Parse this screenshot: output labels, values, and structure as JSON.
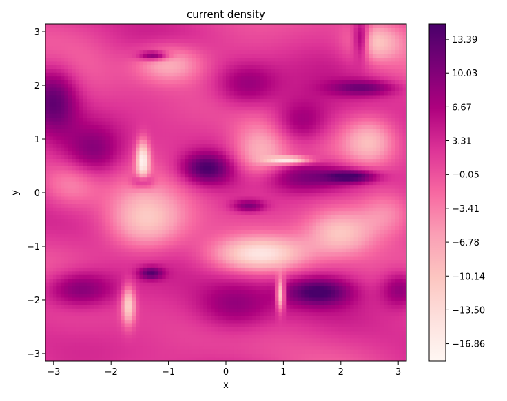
{
  "chart_data": {
    "type": "heatmap",
    "title": "current density",
    "xlabel": "x",
    "ylabel": "y",
    "xlim": [
      -3.14159,
      3.14159
    ],
    "ylim": [
      -3.14159,
      3.14159
    ],
    "xticks": [
      -3,
      -2,
      -1,
      0,
      1,
      2,
      3
    ],
    "yticks": [
      -3,
      -2,
      -1,
      0,
      1,
      2,
      3
    ],
    "colormap": "RdPu",
    "colorbar": {
      "vmin": -18.6,
      "vmax": 14.9,
      "ticks": [
        13.39,
        10.03,
        6.67,
        3.31,
        -0.05,
        -3.41,
        -6.78,
        -10.14,
        -13.5,
        -16.86
      ],
      "tick_labels": [
        "13.39",
        "10.03",
        "6.67",
        "3.31",
        "−0.05",
        "−3.41",
        "−6.78",
        "−10.14",
        "−13.50",
        "−16.86"
      ]
    },
    "grid": false,
    "features": [
      {
        "x": -3.0,
        "y": 1.75,
        "value": 12.5,
        "sx": 0.3,
        "sy": 0.45
      },
      {
        "x": -2.55,
        "y": -1.8,
        "value": 12.5,
        "sx": 0.45,
        "sy": 0.25
      },
      {
        "x": -2.3,
        "y": 0.75,
        "value": 9.0,
        "sx": 0.35,
        "sy": 0.35
      },
      {
        "x": -0.35,
        "y": 0.45,
        "value": 13.0,
        "sx": 0.3,
        "sy": 0.2
      },
      {
        "x": 0.35,
        "y": 2.0,
        "value": 9.5,
        "sx": 0.4,
        "sy": 0.3
      },
      {
        "x": 1.3,
        "y": 1.3,
        "value": 9.0,
        "sx": 0.35,
        "sy": 0.3
      },
      {
        "x": 1.5,
        "y": 0.3,
        "value": 11.0,
        "sx": 0.65,
        "sy": 0.2
      },
      {
        "x": 2.2,
        "y": 0.3,
        "value": 13.0,
        "sx": 0.3,
        "sy": 0.08
      },
      {
        "x": 1.6,
        "y": -1.85,
        "value": 13.0,
        "sx": 0.4,
        "sy": 0.18
      },
      {
        "x": 0.15,
        "y": -2.1,
        "value": 10.0,
        "sx": 0.5,
        "sy": 0.35
      },
      {
        "x": -1.25,
        "y": 2.55,
        "value": 13.5,
        "sx": 0.18,
        "sy": 0.06
      },
      {
        "x": 2.35,
        "y": 2.85,
        "value": 13.5,
        "sx": 0.1,
        "sy": 0.25
      },
      {
        "x": 2.4,
        "y": 1.95,
        "value": 10.0,
        "sx": 0.4,
        "sy": 0.1
      },
      {
        "x": 3.05,
        "y": -1.8,
        "value": 11.0,
        "sx": 0.25,
        "sy": 0.25
      },
      {
        "x": 0.4,
        "y": -0.25,
        "value": 10.0,
        "sx": 0.2,
        "sy": 0.08
      },
      {
        "x": -1.3,
        "y": -1.5,
        "value": 12.0,
        "sx": 0.15,
        "sy": 0.08
      },
      {
        "x": -1.45,
        "y": 0.2,
        "value": 11.0,
        "sx": 0.12,
        "sy": 0.1
      },
      {
        "x": 0.6,
        "y": -1.15,
        "value": -14.0,
        "sx": 0.55,
        "sy": 0.22
      },
      {
        "x": -1.4,
        "y": -0.55,
        "value": -10.0,
        "sx": 0.45,
        "sy": 0.4
      },
      {
        "x": 2.0,
        "y": -0.75,
        "value": -10.0,
        "sx": 0.4,
        "sy": 0.3
      },
      {
        "x": -1.0,
        "y": 2.4,
        "value": -9.0,
        "sx": 0.4,
        "sy": 0.25
      },
      {
        "x": 0.6,
        "y": 0.7,
        "value": -10.0,
        "sx": 0.35,
        "sy": 0.4
      },
      {
        "x": 2.6,
        "y": 2.8,
        "value": -9.0,
        "sx": 0.3,
        "sy": 0.25
      },
      {
        "x": -1.45,
        "y": 0.6,
        "value": -17.0,
        "sx": 0.08,
        "sy": 0.25
      },
      {
        "x": 0.95,
        "y": -1.9,
        "value": -17.0,
        "sx": 0.05,
        "sy": 0.2
      },
      {
        "x": 1.1,
        "y": 0.6,
        "value": -15.0,
        "sx": 0.25,
        "sy": 0.05
      },
      {
        "x": -1.7,
        "y": -2.1,
        "value": -13.0,
        "sx": 0.08,
        "sy": 0.25
      },
      {
        "x": 2.5,
        "y": 0.95,
        "value": -8.0,
        "sx": 0.3,
        "sy": 0.3
      },
      {
        "x": -2.7,
        "y": 0.15,
        "value": -5.0,
        "sx": 0.35,
        "sy": 0.3
      },
      {
        "x": 2.8,
        "y": -0.4,
        "value": -6.0,
        "sx": 0.35,
        "sy": 0.3
      }
    ]
  }
}
